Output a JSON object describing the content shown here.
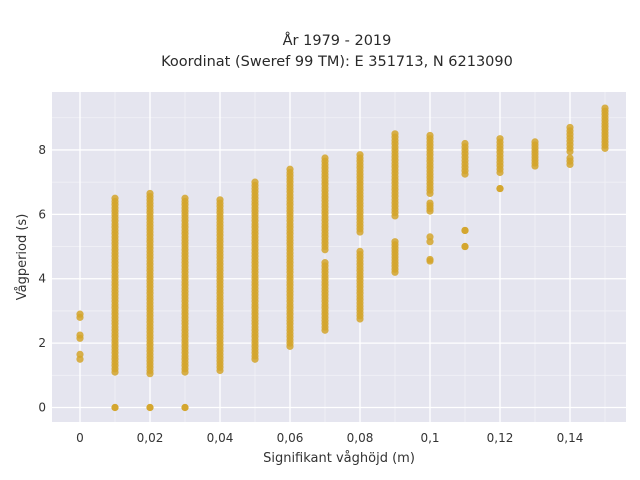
{
  "chart_data": {
    "type": "scatter",
    "title_lines": [
      "År 1979 - 2019",
      "Koordinat (Sweref 99 TM): E 351713, N 6213090"
    ],
    "xlabel": "Signifikant våghöjd (m)",
    "ylabel": "Vågperiod (s)",
    "xlim": [
      -0.008,
      0.156
    ],
    "ylim": [
      -0.45,
      9.8
    ],
    "x_ticks": [
      0,
      0.02,
      0.04,
      0.06,
      0.08,
      0.1,
      0.12,
      0.14
    ],
    "x_tick_labels": [
      "0",
      "0,02",
      "0,04",
      "0,06",
      "0,08",
      "0,1",
      "0,12",
      "0,14"
    ],
    "y_ticks": [
      0,
      2,
      4,
      6,
      8
    ],
    "y_tick_labels": [
      "0",
      "2",
      "4",
      "6",
      "8"
    ],
    "grid": true,
    "background": "#e5e5ef",
    "marker_color": "#d4a52a",
    "series": [
      {
        "columns": [
          {
            "x": 0.0,
            "bands": [
              [
                1.5,
                1.65
              ],
              [
                2.15,
                2.25
              ],
              [
                2.8,
                2.9
              ]
            ]
          },
          {
            "x": 0.01,
            "bands": [
              [
                0.0,
                0.0
              ],
              [
                1.1,
                6.5
              ]
            ]
          },
          {
            "x": 0.02,
            "bands": [
              [
                0.0,
                0.0
              ],
              [
                1.05,
                6.65
              ]
            ]
          },
          {
            "x": 0.03,
            "bands": [
              [
                0.0,
                0.0
              ],
              [
                1.1,
                6.5
              ]
            ]
          },
          {
            "x": 0.04,
            "bands": [
              [
                1.15,
                6.45
              ]
            ]
          },
          {
            "x": 0.05,
            "bands": [
              [
                1.5,
                7.0
              ]
            ]
          },
          {
            "x": 0.06,
            "bands": [
              [
                1.9,
                7.4
              ]
            ]
          },
          {
            "x": 0.07,
            "bands": [
              [
                2.4,
                4.5
              ],
              [
                4.9,
                7.75
              ]
            ]
          },
          {
            "x": 0.08,
            "bands": [
              [
                2.75,
                4.85
              ],
              [
                5.45,
                7.85
              ]
            ]
          },
          {
            "x": 0.09,
            "bands": [
              [
                4.2,
                5.15
              ],
              [
                5.95,
                8.5
              ]
            ]
          },
          {
            "x": 0.1,
            "bands": [
              [
                4.55,
                4.6
              ],
              [
                5.15,
                5.3
              ],
              [
                6.1,
                6.35
              ],
              [
                6.65,
                8.45
              ]
            ]
          },
          {
            "x": 0.11,
            "bands": [
              [
                5.0,
                5.0
              ],
              [
                5.5,
                5.5
              ],
              [
                7.25,
                8.2
              ]
            ]
          },
          {
            "x": 0.12,
            "bands": [
              [
                6.8,
                6.8
              ],
              [
                7.3,
                8.35
              ]
            ]
          },
          {
            "x": 0.13,
            "bands": [
              [
                7.5,
                8.25
              ]
            ]
          },
          {
            "x": 0.14,
            "bands": [
              [
                7.55,
                7.75
              ],
              [
                7.95,
                8.7
              ]
            ]
          },
          {
            "x": 0.15,
            "bands": [
              [
                8.05,
                9.3
              ]
            ]
          }
        ]
      }
    ]
  }
}
